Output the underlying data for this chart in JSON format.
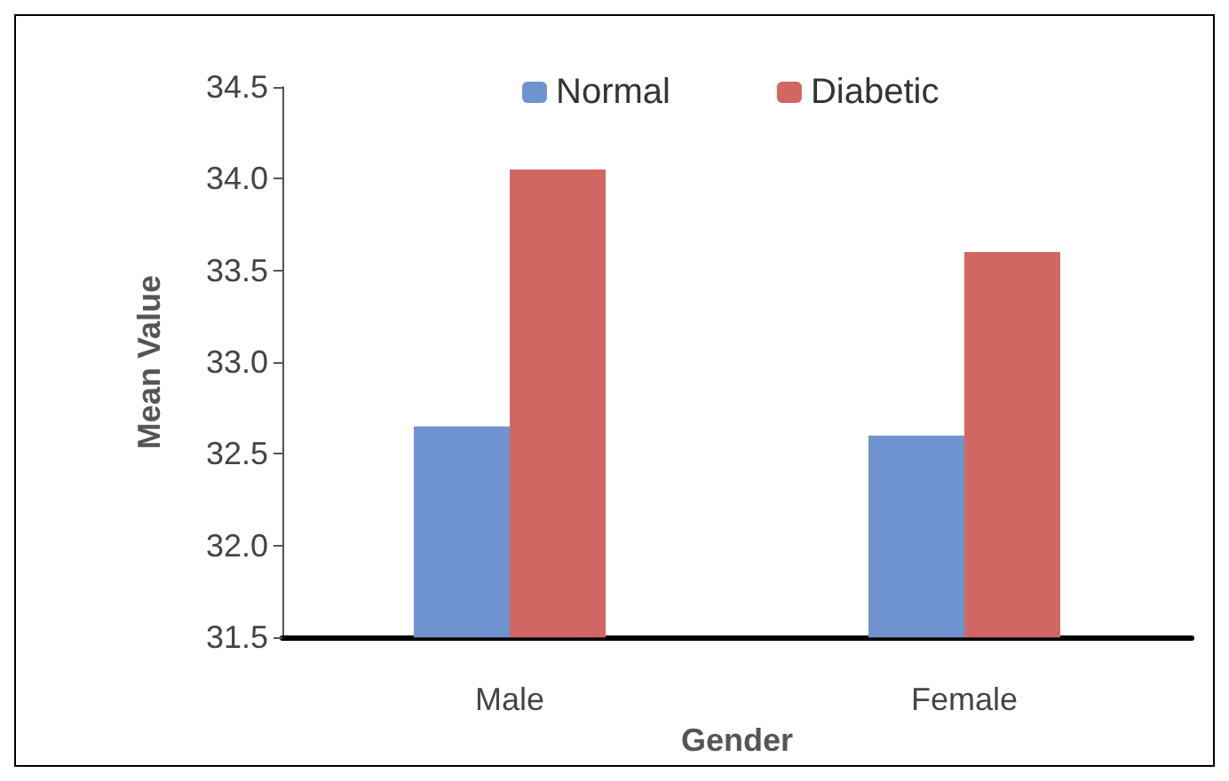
{
  "chart_data": {
    "type": "bar",
    "xlabel": "Gender",
    "ylabel": "Mean Value",
    "categories": [
      "Male",
      "Female"
    ],
    "series": [
      {
        "name": "Normal",
        "color": "#6f93cf",
        "values": [
          32.65,
          32.6
        ]
      },
      {
        "name": "Diabetic",
        "color": "#d06763",
        "values": [
          34.05,
          33.6
        ]
      }
    ],
    "ylim": [
      31.5,
      34.5
    ],
    "yticks": [
      31.5,
      {
        "value": 32,
        "label": "32.0"
      },
      32.5,
      {
        "value": 33,
        "label": "33.0"
      },
      33.5,
      {
        "value": 34,
        "label": "34.0"
      },
      34.5
    ],
    "grid": false,
    "legend": "top"
  }
}
